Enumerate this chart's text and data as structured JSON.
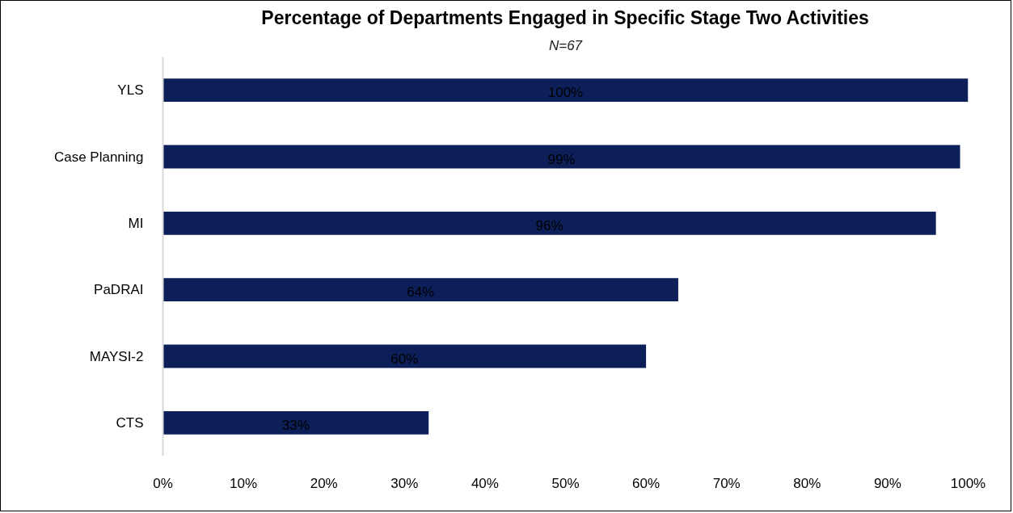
{
  "chart_data": {
    "type": "bar",
    "orientation": "horizontal",
    "title": "Percentage of Departments Engaged in Specific Stage Two Activities",
    "subtitle": "N=67",
    "categories": [
      "YLS",
      "Case Planning",
      "MI",
      "PaDRAI",
      "MAYSI-2",
      "CTS"
    ],
    "values": [
      100,
      99,
      96,
      64,
      60,
      33
    ],
    "value_labels": [
      "100%",
      "99%",
      "96%",
      "64%",
      "60%",
      "33%"
    ],
    "color": "#0c1f58",
    "xlim": [
      0,
      100
    ],
    "xticks": [
      {
        "value": 0,
        "label": "0%"
      },
      {
        "value": 10,
        "label": "10%"
      },
      {
        "value": 20,
        "label": "20%"
      },
      {
        "value": 30,
        "label": "30%"
      },
      {
        "value": 40,
        "label": "40%"
      },
      {
        "value": 50,
        "label": "50%"
      },
      {
        "value": 60,
        "label": "60%"
      },
      {
        "value": 70,
        "label": "70%"
      },
      {
        "value": 80,
        "label": "80%"
      },
      {
        "value": 90,
        "label": "90%"
      },
      {
        "value": 100,
        "label": "100%"
      }
    ],
    "grid": false
  }
}
